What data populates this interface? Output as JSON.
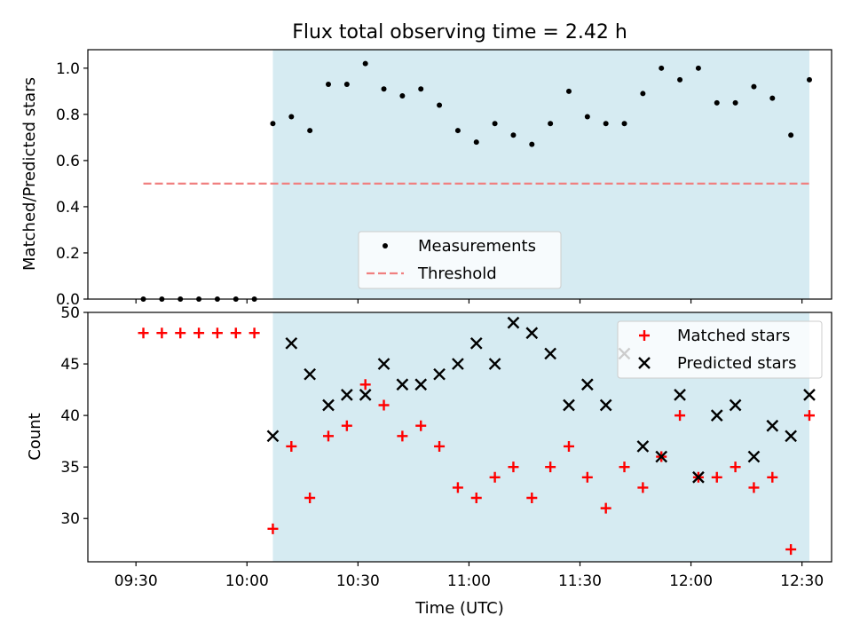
{
  "chart_data": [
    {
      "type": "scatter",
      "title": "Flux total observing time = 2.42 h",
      "xlabel": "",
      "ylabel": "Matched/Predicted stars",
      "xlim": [
        "09:17",
        "12:38"
      ],
      "ylim": [
        0,
        1.08
      ],
      "yticks": [
        "0.0",
        "0.2",
        "0.4",
        "0.6",
        "0.8",
        "1.0"
      ],
      "shaded_range": [
        "10:07",
        "12:32"
      ],
      "shade_color": "#add8e6",
      "legend": {
        "position": "lower-center",
        "entries": [
          "Measurements",
          "Threshold"
        ]
      },
      "series": [
        {
          "name": "Measurements",
          "marker": "dot",
          "color": "#000000",
          "points": [
            [
              "09:32",
              0.0
            ],
            [
              "09:37",
              0.0
            ],
            [
              "09:42",
              0.0
            ],
            [
              "09:47",
              0.0
            ],
            [
              "09:52",
              0.0
            ],
            [
              "09:57",
              0.0
            ],
            [
              "10:02",
              0.0
            ],
            [
              "10:07",
              0.76
            ],
            [
              "10:12",
              0.79
            ],
            [
              "10:17",
              0.73
            ],
            [
              "10:22",
              0.93
            ],
            [
              "10:27",
              0.93
            ],
            [
              "10:32",
              1.02
            ],
            [
              "10:37",
              0.91
            ],
            [
              "10:42",
              0.88
            ],
            [
              "10:47",
              0.91
            ],
            [
              "10:52",
              0.84
            ],
            [
              "10:57",
              0.73
            ],
            [
              "11:02",
              0.68
            ],
            [
              "11:07",
              0.76
            ],
            [
              "11:12",
              0.71
            ],
            [
              "11:17",
              0.67
            ],
            [
              "11:22",
              0.76
            ],
            [
              "11:27",
              0.9
            ],
            [
              "11:32",
              0.79
            ],
            [
              "11:37",
              0.76
            ],
            [
              "11:42",
              0.76
            ],
            [
              "11:47",
              0.89
            ],
            [
              "11:52",
              1.0
            ],
            [
              "11:57",
              0.95
            ],
            [
              "12:02",
              1.0
            ],
            [
              "12:07",
              0.85
            ],
            [
              "12:12",
              0.85
            ],
            [
              "12:17",
              0.92
            ],
            [
              "12:22",
              0.87
            ],
            [
              "12:27",
              0.71
            ],
            [
              "12:32",
              0.95
            ]
          ]
        },
        {
          "name": "Threshold",
          "style": "dashed-line",
          "color": "#f08080",
          "points": [
            [
              "09:32",
              0.5
            ],
            [
              "12:32",
              0.5
            ]
          ]
        }
      ]
    },
    {
      "type": "scatter",
      "title": "",
      "xlabel": "Time (UTC)",
      "ylabel": "Count",
      "xlim": [
        "09:17",
        "12:38"
      ],
      "ylim": [
        25.8,
        50
      ],
      "xticks": [
        "09:30",
        "10:00",
        "10:30",
        "11:00",
        "11:30",
        "12:00",
        "12:30"
      ],
      "yticks": [
        "30",
        "35",
        "40",
        "45",
        "50"
      ],
      "shaded_range": [
        "10:07",
        "12:32"
      ],
      "shade_color": "#add8e6",
      "legend": {
        "position": "upper-right",
        "entries": [
          "Matched stars",
          "Predicted stars"
        ]
      },
      "series": [
        {
          "name": "Matched stars",
          "marker": "plus",
          "color": "#ff0000",
          "points": [
            [
              "09:32",
              48
            ],
            [
              "09:37",
              48
            ],
            [
              "09:42",
              48
            ],
            [
              "09:47",
              48
            ],
            [
              "09:52",
              48
            ],
            [
              "09:57",
              48
            ],
            [
              "10:02",
              48
            ],
            [
              "10:07",
              29
            ],
            [
              "10:12",
              37
            ],
            [
              "10:17",
              32
            ],
            [
              "10:22",
              38
            ],
            [
              "10:27",
              39
            ],
            [
              "10:32",
              43
            ],
            [
              "10:37",
              41
            ],
            [
              "10:42",
              38
            ],
            [
              "10:47",
              39
            ],
            [
              "10:52",
              37
            ],
            [
              "10:57",
              33
            ],
            [
              "11:02",
              32
            ],
            [
              "11:07",
              34
            ],
            [
              "11:12",
              35
            ],
            [
              "11:17",
              32
            ],
            [
              "11:22",
              35
            ],
            [
              "11:27",
              37
            ],
            [
              "11:32",
              34
            ],
            [
              "11:37",
              31
            ],
            [
              "11:42",
              35
            ],
            [
              "11:47",
              33
            ],
            [
              "11:52",
              36
            ],
            [
              "11:57",
              40
            ],
            [
              "12:02",
              34
            ],
            [
              "12:07",
              34
            ],
            [
              "12:12",
              35
            ],
            [
              "12:17",
              33
            ],
            [
              "12:22",
              34
            ],
            [
              "12:27",
              27
            ],
            [
              "12:32",
              40
            ]
          ]
        },
        {
          "name": "Predicted stars",
          "marker": "x",
          "color": "#000000",
          "points": [
            [
              "10:07",
              38
            ],
            [
              "10:12",
              47
            ],
            [
              "10:17",
              44
            ],
            [
              "10:22",
              41
            ],
            [
              "10:27",
              42
            ],
            [
              "10:32",
              42
            ],
            [
              "10:37",
              45
            ],
            [
              "10:42",
              43
            ],
            [
              "10:47",
              43
            ],
            [
              "10:52",
              44
            ],
            [
              "10:57",
              45
            ],
            [
              "11:02",
              47
            ],
            [
              "11:07",
              45
            ],
            [
              "11:12",
              49
            ],
            [
              "11:17",
              48
            ],
            [
              "11:22",
              46
            ],
            [
              "11:27",
              41
            ],
            [
              "11:32",
              43
            ],
            [
              "11:37",
              41
            ],
            [
              "11:42",
              46
            ],
            [
              "11:47",
              37
            ],
            [
              "11:52",
              36
            ],
            [
              "11:57",
              42
            ],
            [
              "12:02",
              34
            ],
            [
              "12:07",
              40
            ],
            [
              "12:12",
              41
            ],
            [
              "12:17",
              36
            ],
            [
              "12:22",
              39
            ],
            [
              "12:27",
              38
            ],
            [
              "12:32",
              42
            ]
          ]
        }
      ]
    }
  ]
}
